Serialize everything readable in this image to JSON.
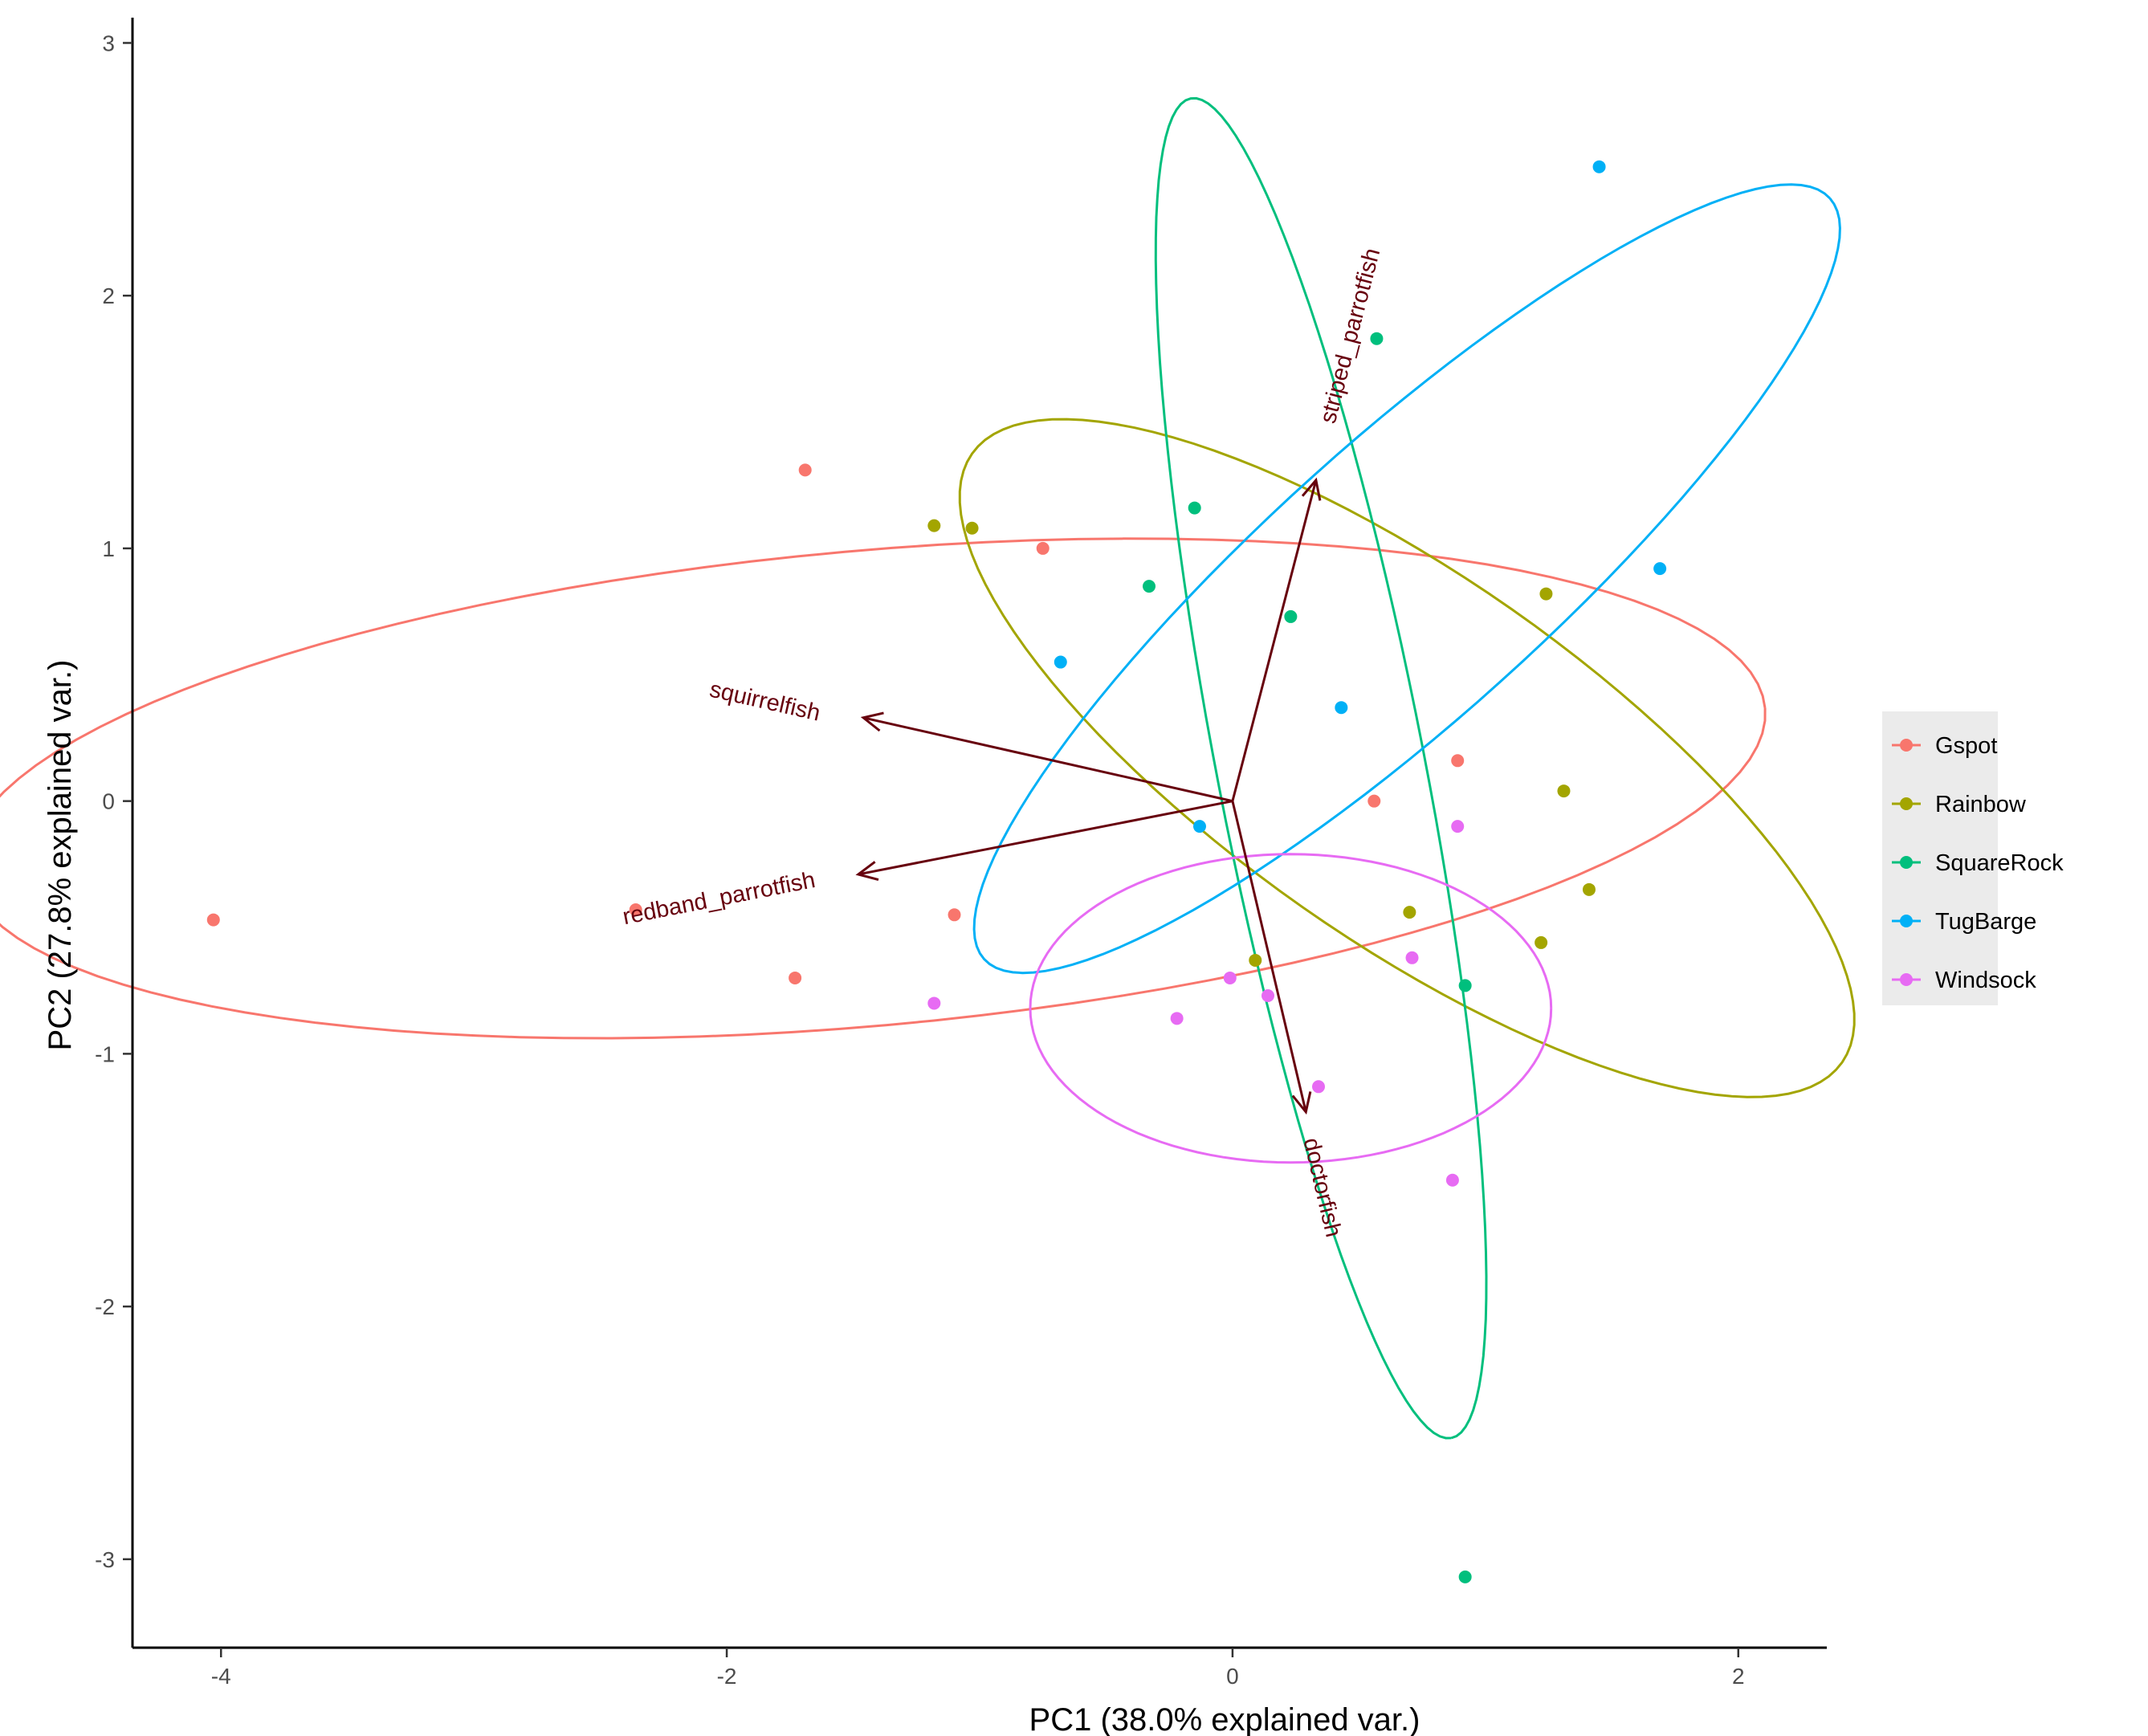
{
  "chart_data": {
    "type": "scatter",
    "subtype": "pca-biplot",
    "xlabel": "PC1 (38.0% explained var.)",
    "ylabel": "PC2 (27.8% explained var.)",
    "xlim": [
      -4.35,
      2.35
    ],
    "ylim": [
      -3.35,
      3.1
    ],
    "xticks": [
      -4,
      -2,
      0,
      2
    ],
    "yticks": [
      -3,
      -2,
      -1,
      0,
      1,
      2,
      3
    ],
    "grid": false,
    "legend_position": "right",
    "loading_color": "#67000d",
    "groups": [
      {
        "name": "Gspot",
        "color": "#F8766D",
        "points": [
          [
            -4.03,
            -0.47
          ],
          [
            -2.36,
            -0.43
          ],
          [
            -1.69,
            1.31
          ],
          [
            -1.73,
            -0.7
          ],
          [
            -1.1,
            -0.45
          ],
          [
            -0.75,
            1.0
          ],
          [
            0.56,
            0.0
          ],
          [
            0.89,
            0.16
          ]
        ],
        "ellipse": {
          "cx": -1.45,
          "cy": 0.05,
          "a": 3.57,
          "b": 0.94,
          "angle_deg": 5.1
        }
      },
      {
        "name": "Rainbow",
        "color": "#A3A500",
        "points": [
          [
            -1.18,
            1.09
          ],
          [
            -1.03,
            1.08
          ],
          [
            0.09,
            -0.63
          ],
          [
            0.7,
            -0.44
          ],
          [
            1.22,
            -0.56
          ],
          [
            1.24,
            0.82
          ],
          [
            1.31,
            0.04
          ],
          [
            1.41,
            -0.35
          ]
        ],
        "ellipse": {
          "cx": 0.69,
          "cy": 0.17,
          "a": 2.1,
          "b": 0.72,
          "angle_deg": -35
        }
      },
      {
        "name": "SquareRock",
        "color": "#00BF7D",
        "points": [
          [
            -0.15,
            1.16
          ],
          [
            -0.33,
            0.85
          ],
          [
            0.23,
            0.73
          ],
          [
            0.57,
            1.83
          ],
          [
            0.92,
            -0.73
          ],
          [
            0.92,
            -3.07
          ]
        ],
        "ellipse": {
          "cx": 0.35,
          "cy": 0.13,
          "a": 2.7,
          "b": 0.41,
          "angle_deg": -79
        }
      },
      {
        "name": "TugBarge",
        "color": "#00B0F6",
        "points": [
          [
            1.45,
            2.51
          ],
          [
            1.69,
            0.92
          ],
          [
            -0.68,
            0.55
          ],
          [
            0.43,
            0.37
          ],
          [
            -0.13,
            -0.1
          ]
        ],
        "ellipse": {
          "cx": 0.69,
          "cy": 0.88,
          "a": 2.25,
          "b": 0.55,
          "angle_deg": 42
        }
      },
      {
        "name": "Windsock",
        "color": "#E76BF3",
        "points": [
          [
            -1.18,
            -0.8
          ],
          [
            -0.22,
            -0.86
          ],
          [
            -0.01,
            -0.7
          ],
          [
            0.14,
            -0.77
          ],
          [
            0.34,
            -1.13
          ],
          [
            0.71,
            -0.62
          ],
          [
            0.89,
            -0.1
          ],
          [
            0.87,
            -1.5
          ]
        ],
        "ellipse": {
          "cx": 0.23,
          "cy": -0.82,
          "a": 1.03,
          "b": 0.61,
          "angle_deg": 0
        }
      }
    ],
    "loadings": [
      {
        "name": "squirrelfish",
        "x": -1.46,
        "y": 0.33,
        "label_x": -1.85,
        "label_y": 0.39
      },
      {
        "name": "redband_parrotfish",
        "x": -1.48,
        "y": -0.29,
        "label_x": -2.03,
        "label_y": -0.39
      },
      {
        "name": "striped_parrotfish",
        "x": 0.33,
        "y": 1.27,
        "label_x": 0.47,
        "label_y": 1.84
      },
      {
        "name": "doctorfish",
        "x": 0.29,
        "y": -1.23,
        "label_x": 0.35,
        "label_y": -1.53
      }
    ]
  }
}
